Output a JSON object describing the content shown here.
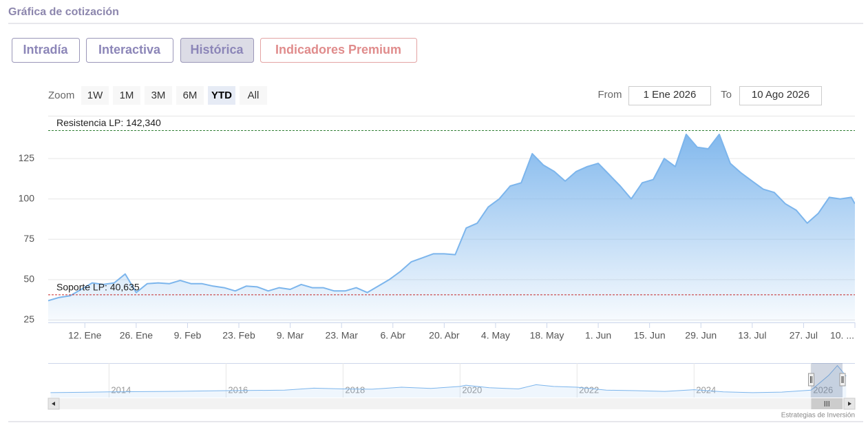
{
  "header": {
    "title": "Gráfica de cotización"
  },
  "tabs": [
    {
      "label": "Intradía",
      "active": false,
      "premium": false
    },
    {
      "label": "Interactiva",
      "active": false,
      "premium": false
    },
    {
      "label": "Histórica",
      "active": true,
      "premium": false
    },
    {
      "label": "Indicadores Premium",
      "active": false,
      "premium": true
    }
  ],
  "zoom": {
    "label": "Zoom",
    "buttons": [
      {
        "label": "1W",
        "active": false
      },
      {
        "label": "1M",
        "active": false
      },
      {
        "label": "3M",
        "active": false
      },
      {
        "label": "6M",
        "active": false
      },
      {
        "label": "YTD",
        "active": true
      },
      {
        "label": "All",
        "active": false
      }
    ]
  },
  "range": {
    "from_label": "From",
    "from": "1 Ene 2026",
    "to_label": "To",
    "to": "10 Ago 2026"
  },
  "chart_data": {
    "type": "area",
    "color": "#7cb5ec",
    "x": [
      "2026-01-02",
      "2026-01-05",
      "2026-01-08",
      "2026-01-11",
      "2026-01-14",
      "2026-01-17",
      "2026-01-20",
      "2026-01-23",
      "2026-01-26",
      "2026-01-29",
      "2026-02-01",
      "2026-02-04",
      "2026-02-07",
      "2026-02-10",
      "2026-02-13",
      "2026-02-16",
      "2026-02-19",
      "2026-02-22",
      "2026-02-25",
      "2026-02-28",
      "2026-03-03",
      "2026-03-06",
      "2026-03-09",
      "2026-03-12",
      "2026-03-15",
      "2026-03-18",
      "2026-03-21",
      "2026-03-24",
      "2026-03-27",
      "2026-03-30",
      "2026-04-02",
      "2026-04-05",
      "2026-04-08",
      "2026-04-11",
      "2026-04-14",
      "2026-04-17",
      "2026-04-20",
      "2026-04-23",
      "2026-04-26",
      "2026-04-29",
      "2026-05-02",
      "2026-05-05",
      "2026-05-08",
      "2026-05-11",
      "2026-05-14",
      "2026-05-17",
      "2026-05-20",
      "2026-05-23",
      "2026-05-26",
      "2026-05-29",
      "2026-06-01",
      "2026-06-04",
      "2026-06-07",
      "2026-06-10",
      "2026-06-13",
      "2026-06-16",
      "2026-06-19",
      "2026-06-22",
      "2026-06-25",
      "2026-06-28",
      "2026-07-01",
      "2026-07-04",
      "2026-07-07",
      "2026-07-10",
      "2026-07-13",
      "2026-07-16",
      "2026-07-19",
      "2026-07-22",
      "2026-07-25",
      "2026-07-28",
      "2026-07-31",
      "2026-08-03",
      "2026-08-06",
      "2026-08-09",
      "2026-08-10"
    ],
    "values": [
      37,
      39,
      40,
      44,
      48,
      47,
      48,
      53.5,
      42,
      47.5,
      48,
      47.5,
      49.5,
      47.5,
      47.5,
      46,
      45,
      43,
      46,
      45.5,
      43,
      45,
      44,
      47,
      45,
      45,
      43,
      43,
      45,
      42,
      46,
      50,
      55,
      61,
      63.5,
      66,
      66,
      65.5,
      82,
      85,
      95,
      100,
      108,
      110,
      128,
      121,
      117,
      111,
      117,
      120,
      122,
      115,
      108,
      100,
      110,
      112,
      125,
      120,
      140,
      132,
      131,
      140,
      122,
      116,
      111,
      106,
      104,
      97,
      93,
      85,
      91,
      101,
      100,
      101,
      97
    ],
    "xlim": [
      "2026-01-02",
      "2026-08-10"
    ],
    "xticks": [
      {
        "value": "2026-01-12",
        "label": "12. Ene"
      },
      {
        "value": "2026-01-26",
        "label": "26. Ene"
      },
      {
        "value": "2026-02-09",
        "label": "9. Feb"
      },
      {
        "value": "2026-02-23",
        "label": "23. Feb"
      },
      {
        "value": "2026-03-09",
        "label": "9. Mar"
      },
      {
        "value": "2026-03-23",
        "label": "23. Mar"
      },
      {
        "value": "2026-04-06",
        "label": "6. Abr"
      },
      {
        "value": "2026-04-20",
        "label": "20. Abr"
      },
      {
        "value": "2026-05-04",
        "label": "4. May"
      },
      {
        "value": "2026-05-18",
        "label": "18. May"
      },
      {
        "value": "2026-06-01",
        "label": "1. Jun"
      },
      {
        "value": "2026-06-15",
        "label": "15. Jun"
      },
      {
        "value": "2026-06-29",
        "label": "29. Jun"
      },
      {
        "value": "2026-07-13",
        "label": "13. Jul"
      },
      {
        "value": "2026-07-27",
        "label": "27. Jul"
      },
      {
        "value": "2026-08-10",
        "label": "10. ..."
      }
    ],
    "ylim": [
      23.5,
      151.5
    ],
    "yticks": [
      25,
      50,
      75,
      100,
      125
    ],
    "grid": true,
    "plot_lines": [
      {
        "label": "Resistencia LP: 142,340",
        "value": 142.34,
        "color": "#2e7d32"
      },
      {
        "label": "Soporte LP: 40,635",
        "value": 40.635,
        "color": "#c62828"
      }
    ],
    "navigator": {
      "x": [
        2013.0,
        2014.0,
        2015.0,
        2016.0,
        2017.0,
        2017.5,
        2018.0,
        2018.5,
        2019.0,
        2019.5,
        2020.0,
        2020.1,
        2020.5,
        2021.0,
        2021.3,
        2021.6,
        2022.0,
        2022.5,
        2023.0,
        2023.5,
        2024.0,
        2024.5,
        2025.0,
        2025.5,
        2026.0,
        2026.3,
        2026.45,
        2026.6
      ],
      "values": [
        30,
        33,
        35,
        38,
        40,
        48,
        45,
        44,
        52,
        47,
        55,
        60,
        50,
        45,
        62,
        55,
        52,
        40,
        38,
        35,
        42,
        33,
        30,
        32,
        40,
        100,
        140,
        97
      ],
      "xlim": [
        2012.96,
        2026.75
      ],
      "ylim": [
        10,
        150
      ],
      "xticks": [
        2014,
        2016,
        2018,
        2020,
        2022,
        2024,
        2026
      ],
      "selection": [
        "2026-01-02",
        "2026-08-10"
      ]
    }
  },
  "credits": "Estrategias de Inversión"
}
